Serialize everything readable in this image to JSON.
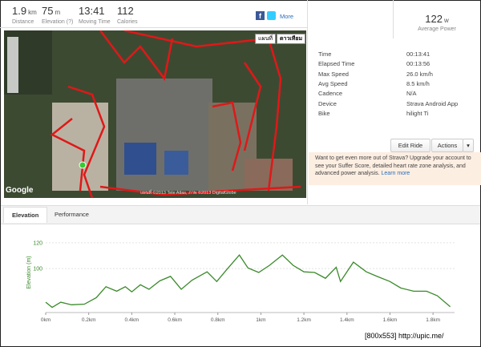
{
  "stats": [
    {
      "value": "1.9",
      "unit": "km",
      "label": "Distance"
    },
    {
      "value": "75",
      "unit": "m",
      "label": "Elevation (?)"
    },
    {
      "value": "13:41",
      "label": "Moving Time"
    },
    {
      "value": "112",
      "label": "Calories"
    }
  ],
  "share": {
    "more": "More"
  },
  "power": {
    "value": "122",
    "unit": "w",
    "label": "Average Power"
  },
  "details": {
    "rows": [
      [
        "Time",
        "00:13:41"
      ],
      [
        "Elapsed Time",
        "00:13:56"
      ],
      [
        "Max Speed",
        "26.0 km/h"
      ],
      [
        "Avg Speed",
        "8.5 km/h"
      ],
      [
        "Cadence",
        "N/A"
      ],
      [
        "Device",
        "Strava Android App"
      ],
      [
        "Bike",
        "hilight Ti"
      ]
    ]
  },
  "buttons": {
    "edit": "Edit Ride",
    "actions": "Actions"
  },
  "promo": {
    "text": "Want to get even more out of Strava? Upgrade your account to see your Suffer Score, detailed heart rate zone analysis, and advanced power analysis.",
    "link": "Learn more"
  },
  "map": {
    "map_button": "แผนที่",
    "satellite_button": "ดาวเทียม",
    "logo": "Google",
    "copyright": "แผนที่ ©2013 Tele Atlas, ภาพ ©2013 DigitalGlobe"
  },
  "tabs": [
    "Elevation",
    "Performance"
  ],
  "chart_data": {
    "type": "line",
    "y_label": "Elevation (m)",
    "color": "#3a8a2a",
    "x": [
      0,
      0.03,
      0.07,
      0.12,
      0.18,
      0.235,
      0.28,
      0.33,
      0.37,
      0.4,
      0.44,
      0.48,
      0.53,
      0.58,
      0.63,
      0.68,
      0.75,
      0.795,
      0.84,
      0.9,
      0.94,
      0.99,
      1.04,
      1.1,
      1.15,
      1.2,
      1.25,
      1.3,
      1.35,
      1.37,
      1.43,
      1.49,
      1.54,
      1.6,
      1.65,
      1.71,
      1.77,
      1.82,
      1.88
    ],
    "values": [
      74,
      70,
      74,
      72,
      72.5,
      77.5,
      86,
      82.5,
      86,
      82,
      87.5,
      84,
      90.5,
      94,
      84,
      91,
      97.5,
      90,
      99,
      110.5,
      100.5,
      97,
      102.5,
      110.5,
      102.5,
      97.5,
      97,
      92.5,
      101,
      90,
      105,
      97.5,
      94,
      90,
      85,
      82.5,
      82.5,
      79,
      70.5
    ],
    "xlim": [
      0,
      1.9
    ],
    "ylim": [
      66,
      128
    ],
    "yticks": [
      100,
      120
    ],
    "xticks": [
      {
        "value": 0,
        "label": "0km"
      },
      {
        "value": 0.2,
        "label": "0.2km"
      },
      {
        "value": 0.4,
        "label": "0.4km"
      },
      {
        "value": 0.6,
        "label": "0.6km"
      },
      {
        "value": 0.8,
        "label": "0.8km"
      },
      {
        "value": 1,
        "label": "1km"
      },
      {
        "value": 1.2,
        "label": "1.2km"
      },
      {
        "value": 1.4,
        "label": "1.4km"
      },
      {
        "value": 1.6,
        "label": "1.6km"
      },
      {
        "value": 1.8,
        "label": "1.8km"
      }
    ],
    "grid": true
  },
  "watermark": "[800x553] http://upic.me/"
}
